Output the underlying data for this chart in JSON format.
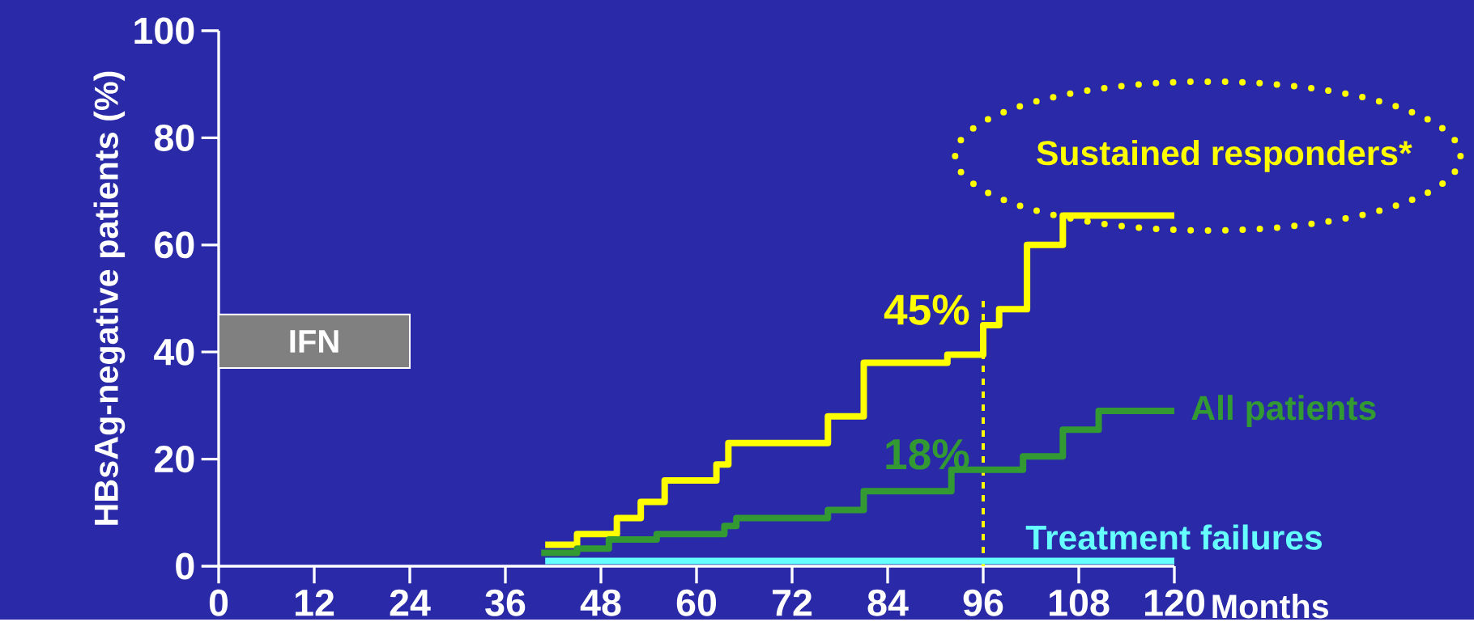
{
  "chart_data": {
    "type": "step",
    "ylabel": "HBsAg-negative patients (%)",
    "xlabel": "Months",
    "xlim": [
      0,
      120
    ],
    "ylim": [
      0,
      100
    ],
    "xticks": [
      0,
      12,
      24,
      36,
      48,
      60,
      72,
      84,
      96,
      108,
      120
    ],
    "yticks": [
      0,
      20,
      40,
      60,
      80,
      100
    ],
    "series": [
      {
        "name": "Sustained responders*",
        "color": "#ffff00",
        "x": [
          41,
          45,
          50,
          53,
          56,
          62.5,
          64,
          76.5,
          81,
          91.5,
          96,
          98,
          101.5,
          106,
          120
        ],
        "values": [
          4,
          6,
          9,
          12,
          16,
          19,
          23,
          28,
          38,
          39.5,
          45,
          48,
          60,
          65.5,
          65.5
        ]
      },
      {
        "name": "All patients",
        "color": "#339933",
        "x": [
          40.5,
          45,
          49,
          55,
          63.5,
          65,
          76.5,
          81,
          92,
          101,
          106,
          110.5,
          120
        ],
        "values": [
          2.5,
          3.3,
          5,
          6,
          7.5,
          9,
          10.5,
          14,
          18,
          20.5,
          25.5,
          29,
          29
        ]
      },
      {
        "name": "Treatment failures",
        "color": "#66ffff",
        "x": [
          41,
          120
        ],
        "values": [
          1,
          1
        ]
      }
    ],
    "ref_lines": [
      {
        "axis": "x",
        "value": 96,
        "color": "#ffff00",
        "line_style": "dotted"
      }
    ],
    "bands": [
      {
        "axis": "x",
        "from": 0,
        "to": 24,
        "label": "IFN",
        "color": "#808080"
      }
    ],
    "annotations": [
      {
        "text": "45%",
        "x": 96,
        "y": 45
      },
      {
        "text": "18%",
        "x": 96,
        "y": 18
      }
    ],
    "grid": false
  }
}
